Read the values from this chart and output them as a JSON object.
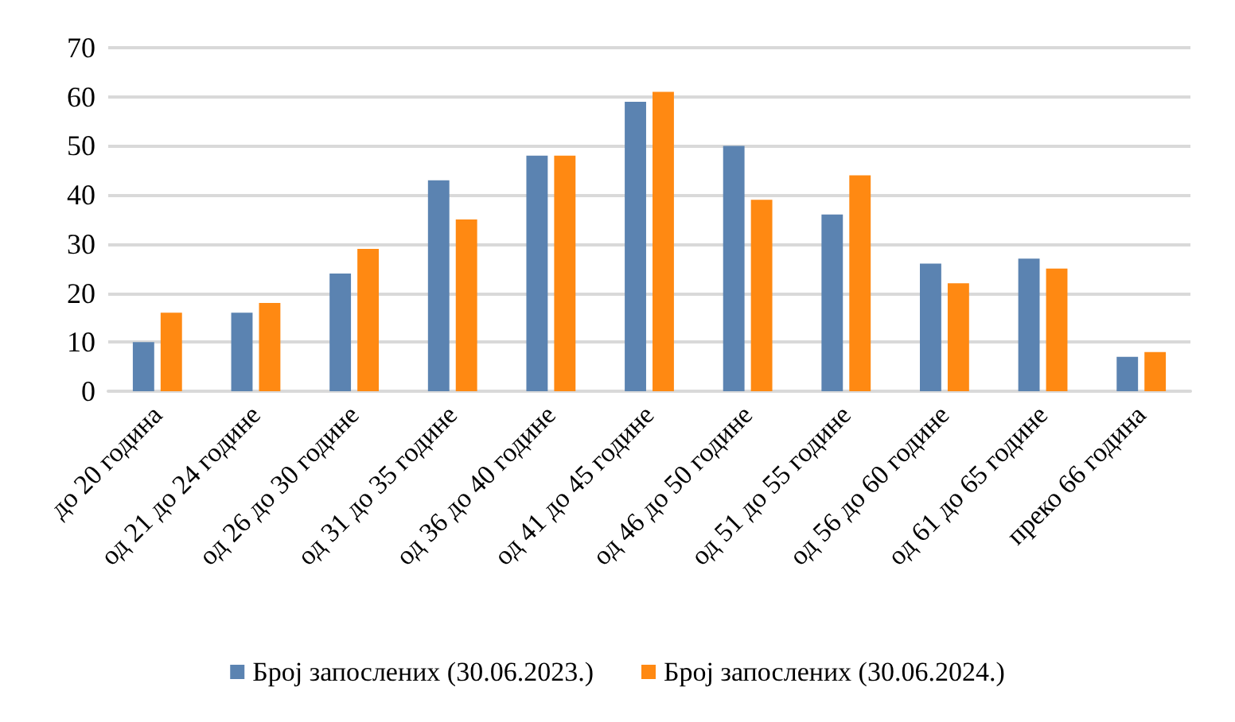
{
  "chart_data": {
    "type": "bar",
    "categories": [
      "до 20 година",
      "од 21 до 24 године",
      "од 26 до 30 године",
      "од 31 до 35 године",
      "од 36 до 40 године",
      "од 41 до 45 године",
      "од 46 до 50 године",
      "од 51 до 55 године",
      "од 56 до 60 године",
      "од 61 до 65 године",
      "преко 66 година"
    ],
    "series": [
      {
        "name": "Број запослених (30.06.2023.)",
        "color": "#5b83b1",
        "values": [
          10,
          16,
          24,
          43,
          48,
          59,
          50,
          36,
          26,
          27,
          7
        ]
      },
      {
        "name": "Број запослених (30.06.2024.)",
        "color": "#ff8912",
        "values": [
          16,
          18,
          29,
          35,
          48,
          61,
          39,
          44,
          22,
          25,
          8
        ]
      }
    ],
    "ylim": [
      0,
      70
    ],
    "yticks": [
      0,
      10,
      20,
      30,
      40,
      50,
      60,
      70
    ],
    "grid": "y",
    "legend": "bottom"
  }
}
